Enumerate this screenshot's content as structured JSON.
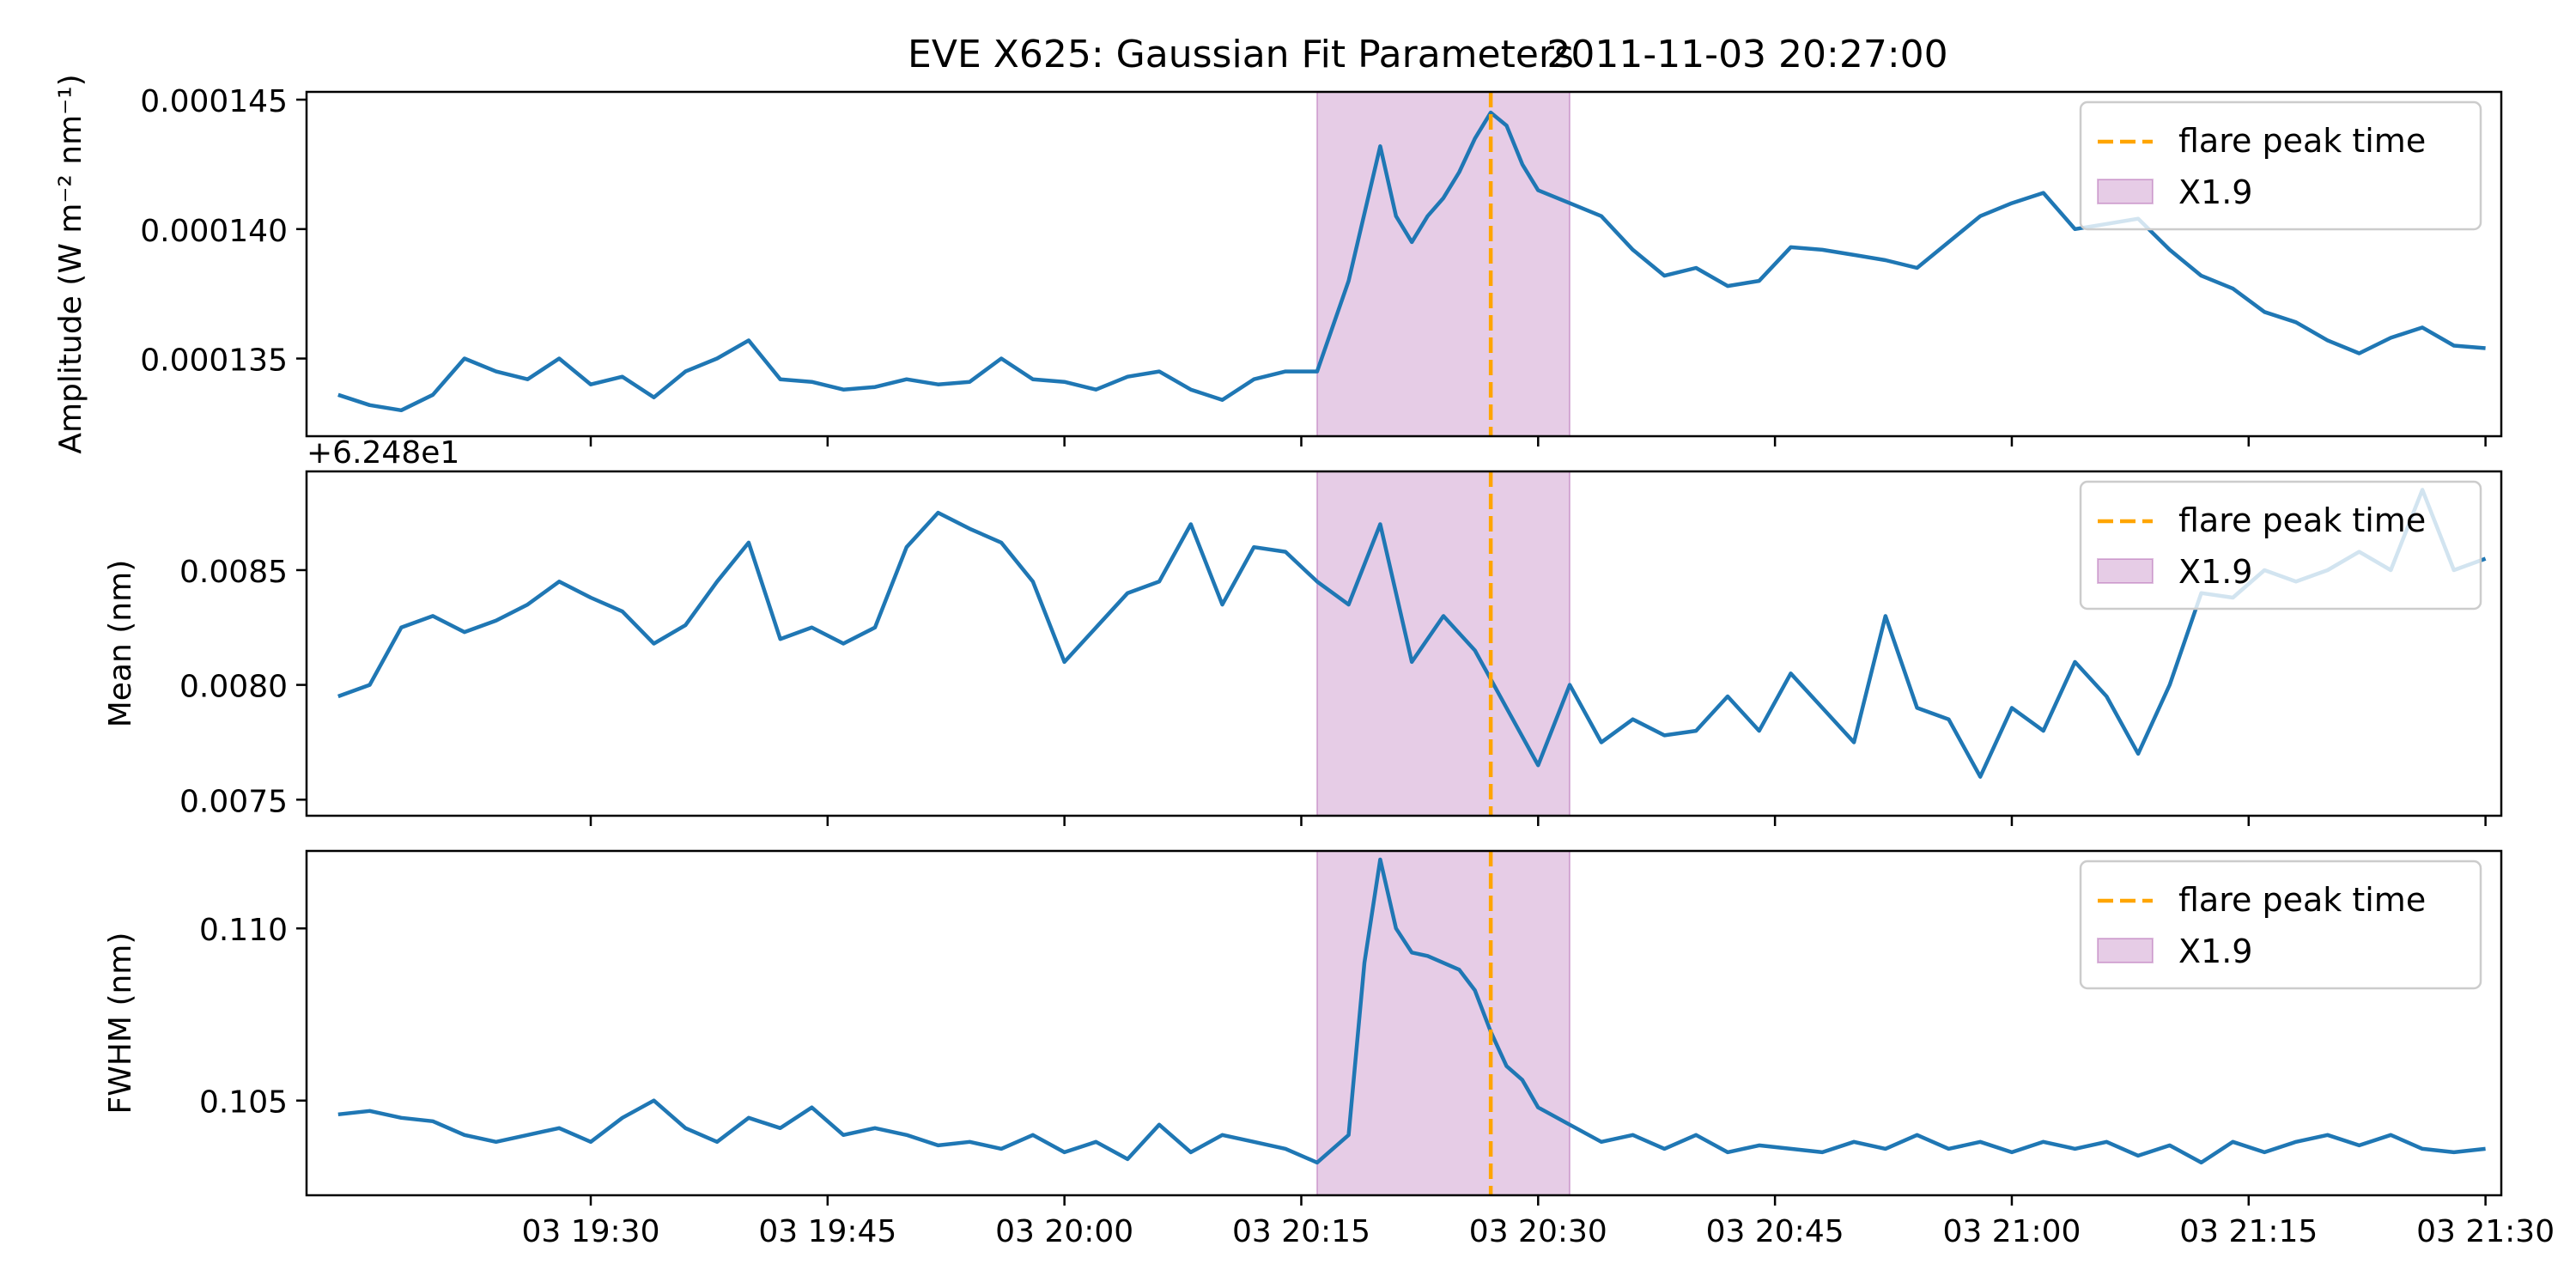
{
  "figure": {
    "title_left": "EVE X625: Gaussian Fit Parameters",
    "title_right": "2011-11-03 20:27:00"
  },
  "chart_data": [
    {
      "type": "line",
      "ylabel": "Amplitude (W m⁻² nm⁻¹)",
      "ylim": [
        0.000132,
        0.0001453
      ],
      "yticks": [
        0.000135,
        0.00014,
        0.000145
      ],
      "ytick_labels": [
        "0.000135",
        "0.000140",
        "0.000145"
      ],
      "offset_text": "",
      "series": [
        {
          "x": [
            "19:14",
            "19:16",
            "19:18",
            "19:20",
            "19:22",
            "19:24",
            "19:26",
            "19:28",
            "19:30",
            "19:32",
            "19:34",
            "19:36",
            "19:38",
            "19:40",
            "19:42",
            "19:44",
            "19:46",
            "19:48",
            "19:50",
            "19:52",
            "19:54",
            "19:56",
            "19:58",
            "20:00",
            "20:02",
            "20:04",
            "20:06",
            "20:08",
            "20:10",
            "20:12",
            "20:14",
            "20:16",
            "20:18",
            "20:20",
            "20:21",
            "20:22",
            "20:23",
            "20:24",
            "20:25",
            "20:26",
            "20:27",
            "20:28",
            "20:29",
            "20:30",
            "20:32",
            "20:34",
            "20:36",
            "20:38",
            "20:40",
            "20:42",
            "20:44",
            "20:46",
            "20:48",
            "20:50",
            "20:52",
            "20:54",
            "20:56",
            "20:58",
            "21:00",
            "21:02",
            "21:04",
            "21:06",
            "21:08",
            "21:10",
            "21:12",
            "21:14",
            "21:16",
            "21:18",
            "21:20",
            "21:22",
            "21:24",
            "21:26",
            "21:28",
            "21:30"
          ],
          "y": [
            0.0001336,
            0.0001332,
            0.000133,
            0.0001336,
            0.000135,
            0.0001345,
            0.0001342,
            0.000135,
            0.000134,
            0.0001343,
            0.0001335,
            0.0001345,
            0.000135,
            0.0001357,
            0.0001342,
            0.0001341,
            0.0001338,
            0.0001339,
            0.0001342,
            0.000134,
            0.0001341,
            0.000135,
            0.0001342,
            0.0001341,
            0.0001338,
            0.0001343,
            0.0001345,
            0.0001338,
            0.0001334,
            0.0001342,
            0.0001345,
            0.0001345,
            0.000138,
            0.0001432,
            0.0001405,
            0.0001395,
            0.0001405,
            0.0001412,
            0.0001422,
            0.0001435,
            0.0001445,
            0.000144,
            0.0001425,
            0.0001415,
            0.000141,
            0.0001405,
            0.0001392,
            0.0001382,
            0.0001385,
            0.0001378,
            0.000138,
            0.0001393,
            0.0001392,
            0.000139,
            0.0001388,
            0.0001385,
            0.0001395,
            0.0001405,
            0.000141,
            0.0001414,
            0.00014,
            0.0001402,
            0.0001404,
            0.0001392,
            0.0001382,
            0.0001377,
            0.0001368,
            0.0001364,
            0.0001357,
            0.0001352,
            0.0001358,
            0.0001362,
            0.0001355,
            0.0001354
          ]
        }
      ],
      "flare_label": "flare peak time",
      "band_label": "X1.9"
    },
    {
      "type": "line",
      "ylabel": "Mean (nm)",
      "ylim": [
        0.00743,
        0.00893
      ],
      "yticks": [
        0.0075,
        0.008,
        0.0085
      ],
      "ytick_labels": [
        "0.0075",
        "0.0080",
        "0.0085"
      ],
      "offset_text": "+6.248e1",
      "series": [
        {
          "x": [
            "19:14",
            "19:16",
            "19:18",
            "19:20",
            "19:22",
            "19:24",
            "19:26",
            "19:28",
            "19:30",
            "19:32",
            "19:34",
            "19:36",
            "19:38",
            "19:40",
            "19:42",
            "19:44",
            "19:46",
            "19:48",
            "19:50",
            "19:52",
            "19:54",
            "19:56",
            "19:58",
            "20:00",
            "20:02",
            "20:04",
            "20:06",
            "20:08",
            "20:10",
            "20:12",
            "20:14",
            "20:16",
            "20:18",
            "20:20",
            "20:22",
            "20:24",
            "20:26",
            "20:28",
            "20:30",
            "20:32",
            "20:34",
            "20:36",
            "20:38",
            "20:40",
            "20:42",
            "20:44",
            "20:46",
            "20:48",
            "20:50",
            "20:52",
            "20:54",
            "20:56",
            "20:58",
            "21:00",
            "21:02",
            "21:04",
            "21:06",
            "21:08",
            "21:10",
            "21:12",
            "21:14",
            "21:16",
            "21:18",
            "21:20",
            "21:22",
            "21:24",
            "21:26",
            "21:28",
            "21:30"
          ],
          "y": [
            0.00795,
            0.008,
            0.00825,
            0.0083,
            0.00823,
            0.00828,
            0.00835,
            0.00845,
            0.00838,
            0.00832,
            0.00818,
            0.00826,
            0.00845,
            0.00862,
            0.0082,
            0.00825,
            0.00818,
            0.00825,
            0.0086,
            0.00875,
            0.00868,
            0.00862,
            0.00845,
            0.0081,
            0.00825,
            0.0084,
            0.00845,
            0.0087,
            0.00835,
            0.0086,
            0.00858,
            0.00845,
            0.00835,
            0.0087,
            0.0081,
            0.0083,
            0.00815,
            0.0079,
            0.00765,
            0.008,
            0.00775,
            0.00785,
            0.00778,
            0.0078,
            0.00795,
            0.0078,
            0.00805,
            0.0079,
            0.00775,
            0.0083,
            0.0079,
            0.00785,
            0.0076,
            0.0079,
            0.0078,
            0.0081,
            0.00795,
            0.0077,
            0.008,
            0.0084,
            0.00838,
            0.0085,
            0.00845,
            0.0085,
            0.00858,
            0.0085,
            0.00885,
            0.0085,
            0.00855
          ]
        }
      ],
      "flare_label": "flare peak time",
      "band_label": "X1.9"
    },
    {
      "type": "line",
      "ylabel": "FWHM (nm)",
      "ylim": [
        0.10225,
        0.11225
      ],
      "yticks": [
        0.105,
        0.11
      ],
      "ytick_labels": [
        "0.105",
        "0.110"
      ],
      "offset_text": "",
      "series": [
        {
          "x": [
            "19:14",
            "19:16",
            "19:18",
            "19:20",
            "19:22",
            "19:24",
            "19:26",
            "19:28",
            "19:30",
            "19:32",
            "19:34",
            "19:36",
            "19:38",
            "19:40",
            "19:42",
            "19:44",
            "19:46",
            "19:48",
            "19:50",
            "19:52",
            "19:54",
            "19:56",
            "19:58",
            "20:00",
            "20:02",
            "20:04",
            "20:06",
            "20:08",
            "20:10",
            "20:12",
            "20:14",
            "20:16",
            "20:18",
            "20:19",
            "20:20",
            "20:21",
            "20:22",
            "20:23",
            "20:24",
            "20:25",
            "20:26",
            "20:27",
            "20:28",
            "20:29",
            "20:30",
            "20:32",
            "20:34",
            "20:36",
            "20:38",
            "20:40",
            "20:42",
            "20:44",
            "20:46",
            "20:48",
            "20:50",
            "20:52",
            "20:54",
            "20:56",
            "20:58",
            "21:00",
            "21:02",
            "21:04",
            "21:06",
            "21:08",
            "21:10",
            "21:12",
            "21:14",
            "21:16",
            "21:18",
            "21:20",
            "21:22",
            "21:24",
            "21:26",
            "21:28",
            "21:30"
          ],
          "y": [
            0.1046,
            0.1047,
            0.1045,
            0.1044,
            0.104,
            0.1038,
            0.104,
            0.1042,
            0.1038,
            0.1045,
            0.105,
            0.1042,
            0.1038,
            0.1045,
            0.1042,
            0.1048,
            0.104,
            0.1042,
            0.104,
            0.1037,
            0.1038,
            0.1036,
            0.104,
            0.1035,
            0.1038,
            0.1033,
            0.1043,
            0.1035,
            0.104,
            0.1038,
            0.1036,
            0.1032,
            0.104,
            0.109,
            0.112,
            0.11,
            0.1093,
            0.1092,
            0.109,
            0.1088,
            0.1082,
            0.107,
            0.106,
            0.1056,
            0.1048,
            0.1043,
            0.1038,
            0.104,
            0.1036,
            0.104,
            0.1035,
            0.1037,
            0.1036,
            0.1035,
            0.1038,
            0.1036,
            0.104,
            0.1036,
            0.1038,
            0.1035,
            0.1038,
            0.1036,
            0.1038,
            0.1034,
            0.1037,
            0.1032,
            0.1038,
            0.1035,
            0.1038,
            0.104,
            0.1037,
            0.104,
            0.1036,
            0.1035,
            0.1036
          ]
        }
      ],
      "flare_label": "flare peak time",
      "band_label": "X1.9"
    }
  ],
  "xaxis": {
    "range": [
      "19:12",
      "21:31"
    ],
    "ticks": [
      "19:30",
      "19:45",
      "20:00",
      "20:15",
      "20:30",
      "20:45",
      "21:00",
      "21:15",
      "21:30"
    ],
    "tick_labels": [
      "03 19:30",
      "03 19:45",
      "03 20:00",
      "03 20:15",
      "03 20:30",
      "03 20:45",
      "03 21:00",
      "03 21:15",
      "03 21:30"
    ]
  },
  "annotations": {
    "flare_peak_time": "20:27",
    "band_start": "20:16",
    "band_end": "20:32"
  },
  "colors": {
    "series": "#1f77b4",
    "flare_line": "#ffa500",
    "band_fill": "#800080"
  }
}
